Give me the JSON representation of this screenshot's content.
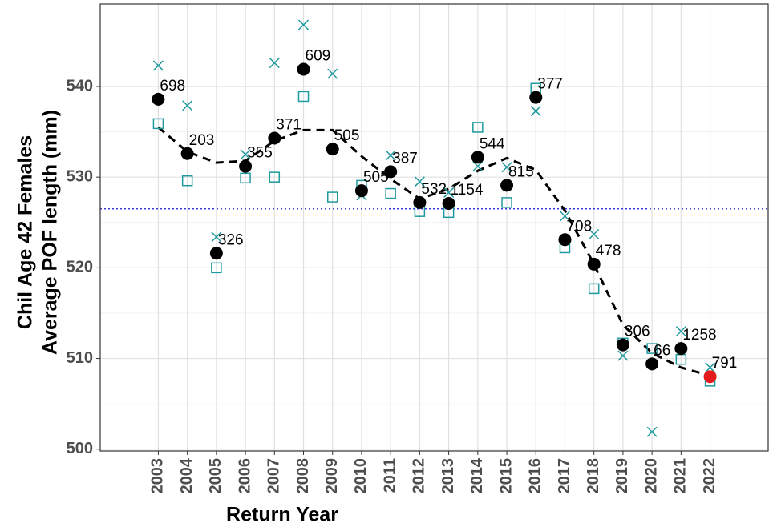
{
  "chart_data": {
    "type": "scatter",
    "xlabel": "Return Year",
    "ylabel": [
      "Chil Age 42 Females",
      "Average POF length (mm)"
    ],
    "x": [
      2003,
      2004,
      2005,
      2006,
      2007,
      2008,
      2009,
      2010,
      2011,
      2012,
      2013,
      2014,
      2015,
      2016,
      2017,
      2018,
      2019,
      2020,
      2021,
      2022
    ],
    "xlim": [
      2001,
      2024
    ],
    "xticks": [
      2003,
      2004,
      2005,
      2006,
      2007,
      2008,
      2009,
      2010,
      2011,
      2012,
      2013,
      2014,
      2015,
      2016,
      2017,
      2018,
      2019,
      2020,
      2021,
      2022
    ],
    "ylim": [
      499.8,
      549.1
    ],
    "yticks": [
      500,
      510,
      520,
      530,
      540
    ],
    "grid": true,
    "reference_line": {
      "value": 526.5,
      "color": "#3b3bd6"
    },
    "series": [
      {
        "marker": "circle",
        "color": "#000000",
        "colors": [
          "#000000",
          "#000000",
          "#000000",
          "#000000",
          "#000000",
          "#000000",
          "#000000",
          "#000000",
          "#000000",
          "#000000",
          "#000000",
          "#000000",
          "#000000",
          "#000000",
          "#000000",
          "#000000",
          "#000000",
          "#000000",
          "#000000",
          "#e41a1c"
        ],
        "values": [
          538.6,
          532.6,
          521.6,
          531.2,
          534.3,
          541.9,
          533.1,
          528.5,
          530.6,
          527.2,
          527.1,
          532.2,
          529.1,
          538.8,
          523.1,
          520.4,
          511.5,
          509.4,
          511.1,
          508.0
        ],
        "labels": [
          "698",
          "203",
          "326",
          "355",
          "371",
          "609",
          "505",
          "505",
          "387",
          "532",
          "1154",
          "544",
          "815",
          "377",
          "708",
          "478",
          "306",
          "66",
          "1258",
          "791"
        ]
      },
      {
        "marker": "square",
        "color": "#1f9a9e",
        "values": [
          535.9,
          529.6,
          520.0,
          529.9,
          530.0,
          538.9,
          527.8,
          529.1,
          528.2,
          526.2,
          526.1,
          535.5,
          527.2,
          539.8,
          522.2,
          517.7,
          511.7,
          511.1,
          509.9,
          507.5
        ]
      },
      {
        "marker": "cross",
        "color": "#1f9a9e",
        "values": [
          542.3,
          537.9,
          523.4,
          532.5,
          542.6,
          546.8,
          541.4,
          528.0,
          532.4,
          529.5,
          528.3,
          531.2,
          531.1,
          537.3,
          525.7,
          523.7,
          510.3,
          501.9,
          513.0,
          509.0
        ]
      },
      {
        "marker": "dashed-line",
        "color": "#000000",
        "values": [
          535.5,
          532.8,
          531.6,
          531.8,
          534.0,
          535.2,
          535.2,
          532.3,
          529.8,
          527.6,
          528.7,
          530.7,
          532.1,
          530.8,
          526.3,
          520.4,
          513.7,
          510.6,
          509.0,
          508.1
        ]
      }
    ]
  }
}
